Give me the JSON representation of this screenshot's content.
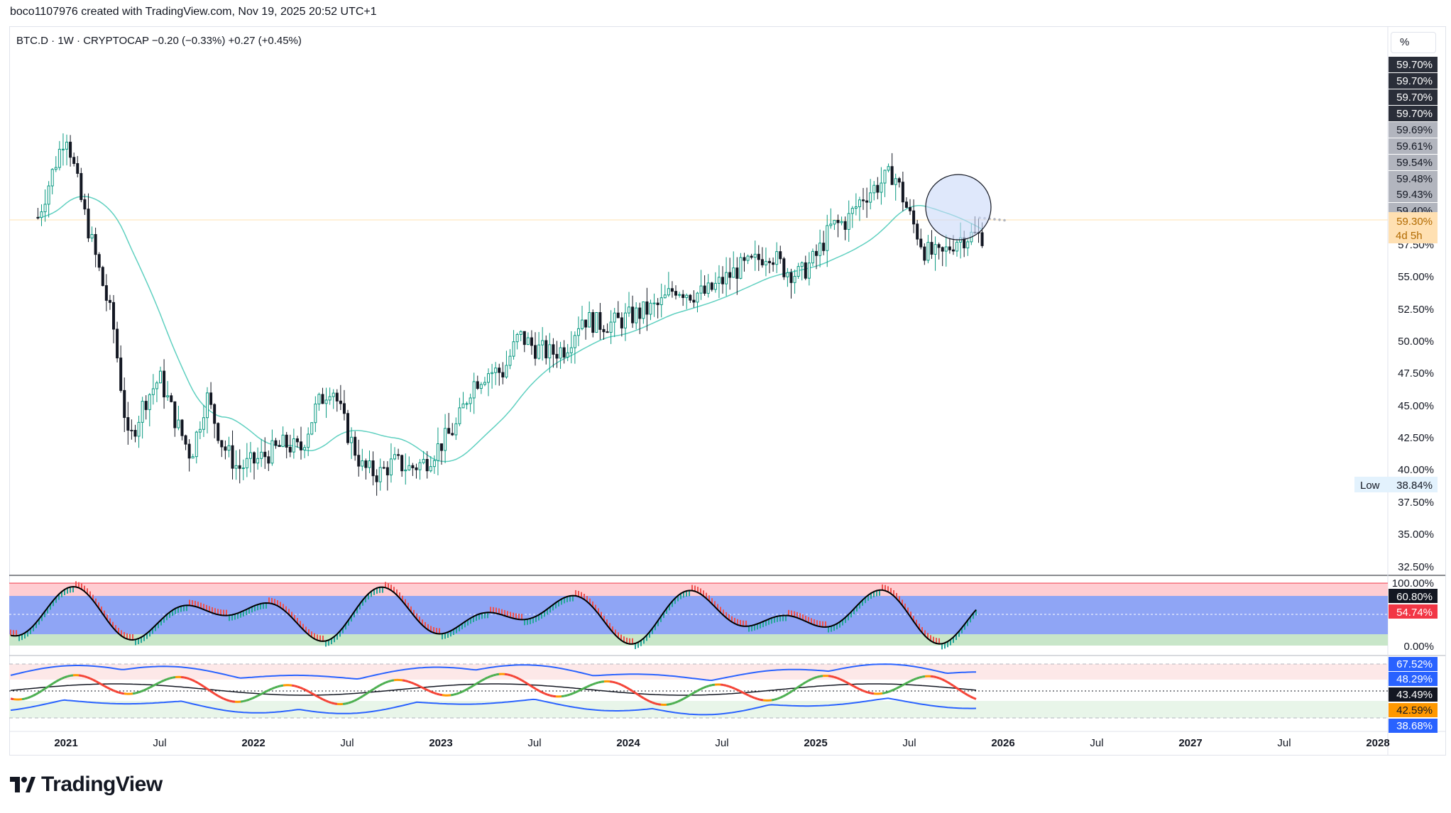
{
  "header": {
    "credit": "boco1107976 created with TradingView.com, Nov 19, 2025 20:52 UTC+1"
  },
  "symbol": {
    "name": "BTC.D",
    "interval": "1W",
    "source": "CRYPTOCAP",
    "change_1": "−0.20 (−0.33%)",
    "change_2": "+0.27 (+0.45%)",
    "sep": "·"
  },
  "scale_button": "%",
  "price_axis": {
    "ticks": [
      "57.50%",
      "55.00%",
      "52.50%",
      "50.00%",
      "47.50%",
      "45.00%",
      "42.50%",
      "40.00%",
      "37.50%",
      "35.00%",
      "32.50%"
    ],
    "stacked_labels": [
      {
        "text": "59.70%",
        "bg": "#2a2e39",
        "fg": "#ffffff"
      },
      {
        "text": "59.70%",
        "bg": "#2a2e39",
        "fg": "#ffffff"
      },
      {
        "text": "59.70%",
        "bg": "#2a2e39",
        "fg": "#ffffff"
      },
      {
        "text": "59.70%",
        "bg": "#2a2e39",
        "fg": "#ffffff"
      },
      {
        "text": "59.69%",
        "bg": "#b2b5be",
        "fg": "#131722"
      },
      {
        "text": "59.61%",
        "bg": "#b2b5be",
        "fg": "#131722"
      },
      {
        "text": "59.54%",
        "bg": "#b2b5be",
        "fg": "#131722"
      },
      {
        "text": "59.48%",
        "bg": "#b2b5be",
        "fg": "#131722"
      },
      {
        "text": "59.43%",
        "bg": "#b2b5be",
        "fg": "#131722"
      },
      {
        "text": "59.40%",
        "bg": "#b2b5be",
        "fg": "#131722"
      }
    ],
    "current_price": "59.30%",
    "countdown": "4d 5h",
    "low_label": "Low",
    "low_value": "38.84%"
  },
  "indicator_1": {
    "ticks": [
      "100.00%",
      "0.00%"
    ],
    "value_black": "60.80%",
    "value_red": "54.74%"
  },
  "indicator_2": {
    "labels": [
      {
        "text": "67.52%",
        "bg": "#2962ff",
        "fg": "#ffffff"
      },
      {
        "text": "48.29%",
        "bg": "#2962ff",
        "fg": "#ffffff"
      },
      {
        "text": "43.49%",
        "bg": "#131722",
        "fg": "#ffffff"
      },
      {
        "text": "42.59%",
        "bg": "#ff9800",
        "fg": "#131722"
      },
      {
        "text": "38.68%",
        "bg": "#2962ff",
        "fg": "#ffffff"
      }
    ]
  },
  "time_axis": [
    "2021",
    "Jul",
    "2022",
    "Jul",
    "2023",
    "Jul",
    "2024",
    "Jul",
    "2025",
    "Jul",
    "2026",
    "Jul",
    "2027",
    "Jul",
    "2028"
  ],
  "brand": {
    "name": "TradingView"
  },
  "colors": {
    "up": "#089981",
    "down": "#131722",
    "ma": "#5fd0c0",
    "stoch_line": "#000000",
    "stoch_up": "#26a69a",
    "stoch_down": "#ef5350",
    "ob_band": "#ffcdd2",
    "mid_band": "#8fa5f5",
    "os_band": "#c8e6c9",
    "rsi_up": "#4caf50",
    "rsi_down": "#f44336",
    "rsi_flat": "#ff9800",
    "bb": "#2962ff",
    "circle_fill": "#c9d8f8"
  },
  "chart_data": {
    "type": "candlestick",
    "title": "BTC.D · 1W · CRYPTOCAP",
    "ylabel": "",
    "xlabel": "",
    "ylim": [
      32,
      60.5
    ],
    "y_scale": "linear",
    "grid": false,
    "current_price": 59.3,
    "all_time_low": 38.84,
    "series": [
      {
        "name": "BTC.D weekly close",
        "values": [
          {
            "t": "2020-11",
            "v": 60.0
          },
          {
            "t": "2021-01",
            "v": 68.0
          },
          {
            "t": "2021-02",
            "v": 62.0
          },
          {
            "t": "2021-04",
            "v": 52.0
          },
          {
            "t": "2021-05",
            "v": 42.0
          },
          {
            "t": "2021-06",
            "v": 45.5
          },
          {
            "t": "2021-07",
            "v": 47.5
          },
          {
            "t": "2021-08",
            "v": 44.0
          },
          {
            "t": "2021-09",
            "v": 41.0
          },
          {
            "t": "2021-10",
            "v": 46.0
          },
          {
            "t": "2021-11",
            "v": 42.0
          },
          {
            "t": "2021-12",
            "v": 40.0
          },
          {
            "t": "2022-01",
            "v": 40.5
          },
          {
            "t": "2022-03",
            "v": 42.0
          },
          {
            "t": "2022-04",
            "v": 41.5
          },
          {
            "t": "2022-05",
            "v": 45.0
          },
          {
            "t": "2022-06",
            "v": 47.0
          },
          {
            "t": "2022-07",
            "v": 43.0
          },
          {
            "t": "2022-08",
            "v": 40.0
          },
          {
            "t": "2022-09",
            "v": 39.5
          },
          {
            "t": "2022-10",
            "v": 40.5
          },
          {
            "t": "2022-11",
            "v": 40.0
          },
          {
            "t": "2022-12",
            "v": 40.5
          },
          {
            "t": "2023-01",
            "v": 42.0
          },
          {
            "t": "2023-02",
            "v": 43.5
          },
          {
            "t": "2023-03",
            "v": 47.0
          },
          {
            "t": "2023-04",
            "v": 48.0
          },
          {
            "t": "2023-05",
            "v": 48.0
          },
          {
            "t": "2023-06",
            "v": 51.0
          },
          {
            "t": "2023-07",
            "v": 50.0
          },
          {
            "t": "2023-08",
            "v": 49.5
          },
          {
            "t": "2023-09",
            "v": 50.0
          },
          {
            "t": "2023-10",
            "v": 52.5
          },
          {
            "t": "2023-11",
            "v": 52.0
          },
          {
            "t": "2023-12",
            "v": 52.0
          },
          {
            "t": "2024-01",
            "v": 52.5
          },
          {
            "t": "2024-02",
            "v": 53.0
          },
          {
            "t": "2024-03",
            "v": 53.5
          },
          {
            "t": "2024-04",
            "v": 55.0
          },
          {
            "t": "2024-05",
            "v": 54.5
          },
          {
            "t": "2024-06",
            "v": 54.5
          },
          {
            "t": "2024-07",
            "v": 55.5
          },
          {
            "t": "2024-08",
            "v": 56.5
          },
          {
            "t": "2024-09",
            "v": 57.0
          },
          {
            "t": "2024-10",
            "v": 58.0
          },
          {
            "t": "2024-11",
            "v": 56.5
          },
          {
            "t": "2024-12",
            "v": 56.0
          },
          {
            "t": "2025-01",
            "v": 57.5
          },
          {
            "t": "2025-02",
            "v": 60.0
          },
          {
            "t": "2025-03",
            "v": 60.5
          },
          {
            "t": "2025-04",
            "v": 62.5
          },
          {
            "t": "2025-05",
            "v": 63.5
          },
          {
            "t": "2025-06",
            "v": 64.5
          },
          {
            "t": "2025-07",
            "v": 61.0
          },
          {
            "t": "2025-08",
            "v": 58.0
          },
          {
            "t": "2025-09",
            "v": 57.5
          },
          {
            "t": "2025-10",
            "v": 59.0
          },
          {
            "t": "2025-11",
            "v": 59.3
          }
        ]
      }
    ]
  }
}
